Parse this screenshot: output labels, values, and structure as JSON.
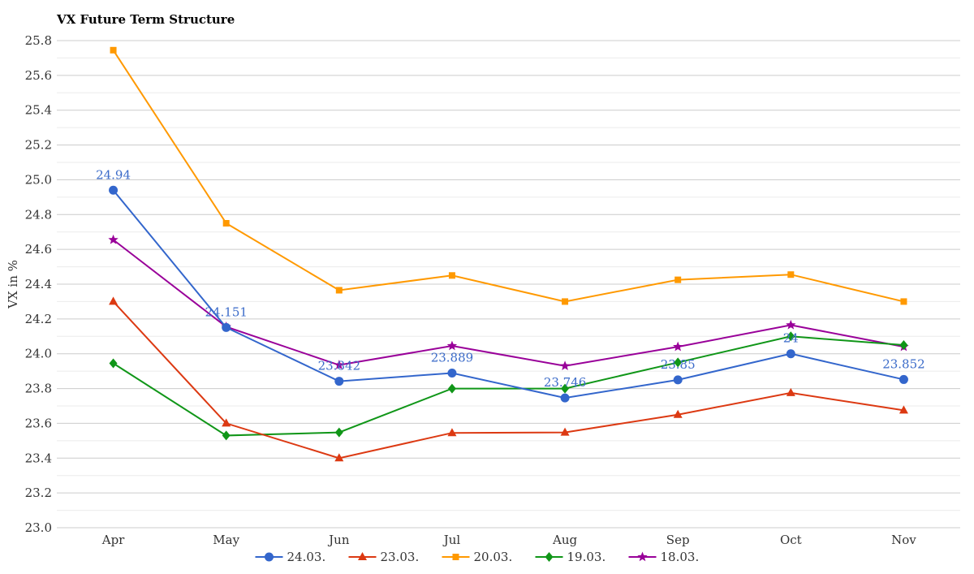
{
  "chart_data": {
    "type": "line",
    "title": "VX Future Term Structure",
    "xlabel": "",
    "ylabel": "VX in %",
    "categories": [
      "Apr",
      "May",
      "Jun",
      "Jul",
      "Aug",
      "Sep",
      "Oct",
      "Nov"
    ],
    "ylim": [
      23.0,
      25.8
    ],
    "yticks": [
      "23.0",
      "23.2",
      "23.4",
      "23.6",
      "23.8",
      "24.0",
      "24.2",
      "24.4",
      "24.6",
      "24.8",
      "25.0",
      "25.2",
      "25.4",
      "25.6",
      "25.8"
    ],
    "grid": true,
    "legend_position": "bottom",
    "series": [
      {
        "name": "24.03.",
        "color": "#3366cc",
        "marker": "circle",
        "values": [
          24.94,
          24.151,
          23.842,
          23.889,
          23.746,
          23.85,
          24.0,
          23.852
        ],
        "labels": [
          "24.94",
          "24.151",
          "23.842",
          "23.889",
          "23.746",
          "23.85",
          "24",
          "23.852"
        ]
      },
      {
        "name": "23.03.",
        "color": "#dc3912",
        "marker": "triangle",
        "values": [
          24.3,
          23.6,
          23.4,
          23.545,
          23.548,
          23.65,
          23.775,
          23.675
        ]
      },
      {
        "name": "20.03.",
        "color": "#ff9900",
        "marker": "square",
        "values": [
          25.745,
          24.75,
          24.365,
          24.45,
          24.3,
          24.425,
          24.455,
          24.3
        ]
      },
      {
        "name": "19.03.",
        "color": "#109618",
        "marker": "diamond",
        "values": [
          23.945,
          23.53,
          23.548,
          23.8,
          23.8,
          23.95,
          24.1,
          24.05
        ]
      },
      {
        "name": "18.03.",
        "color": "#990099",
        "marker": "star",
        "values": [
          24.655,
          24.155,
          23.935,
          24.045,
          23.93,
          24.04,
          24.165,
          24.04
        ]
      }
    ]
  }
}
